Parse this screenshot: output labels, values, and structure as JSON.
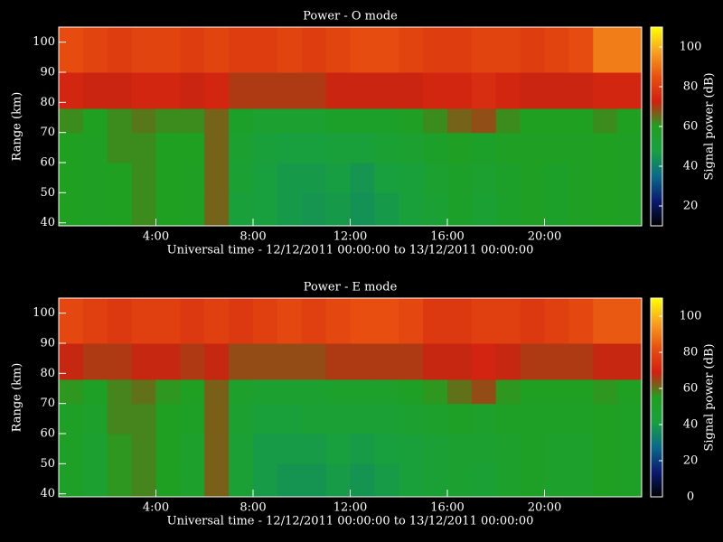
{
  "chart_data": [
    {
      "type": "heatmap",
      "title": "Power - O mode",
      "x_label": "Universal time - 12/12/2011 00:00:00 to 13/12/2011 00:00:00",
      "y_label": "Range (km)",
      "colorbar_label": "Signal power (dB)",
      "x_bins": [
        0,
        1,
        2,
        3,
        4,
        5,
        6,
        7,
        8,
        9,
        10,
        11,
        12,
        13,
        14,
        15,
        16,
        17,
        18,
        19,
        20,
        21,
        22,
        23,
        24
      ],
      "y_bins": [
        39,
        50,
        60,
        70,
        78,
        90,
        105
      ],
      "values": [
        [
          60,
          58,
          60,
          62,
          60,
          58,
          66,
          50,
          48,
          46,
          45,
          46,
          44,
          46,
          50,
          52,
          56,
          52,
          56,
          58,
          56,
          58,
          60,
          58
        ],
        [
          60,
          58,
          60,
          62,
          60,
          58,
          66,
          52,
          48,
          46,
          46,
          47,
          45,
          48,
          50,
          54,
          56,
          54,
          56,
          58,
          56,
          58,
          60,
          58
        ],
        [
          60,
          58,
          62,
          62,
          60,
          60,
          66,
          54,
          50,
          48,
          48,
          50,
          50,
          52,
          54,
          56,
          58,
          56,
          58,
          58,
          58,
          58,
          60,
          58
        ],
        [
          62,
          60,
          62,
          64,
          62,
          62,
          66,
          56,
          54,
          54,
          54,
          56,
          56,
          56,
          58,
          62,
          66,
          68,
          62,
          60,
          60,
          60,
          62,
          60
        ],
        [
          74,
          72,
          72,
          74,
          74,
          72,
          74,
          70,
          70,
          70,
          70,
          72,
          72,
          72,
          72,
          74,
          74,
          76,
          74,
          72,
          72,
          72,
          74,
          74
        ],
        [
          84,
          82,
          80,
          82,
          82,
          80,
          82,
          80,
          80,
          82,
          80,
          82,
          84,
          84,
          82,
          80,
          80,
          82,
          82,
          80,
          82,
          84,
          92,
          92
        ]
      ],
      "xlim": [
        0,
        24
      ],
      "ylim": [
        39,
        105
      ],
      "xticks": [
        {
          "value": 4,
          "label": "4:00"
        },
        {
          "value": 8,
          "label": "8:00"
        },
        {
          "value": 12,
          "label": "12:00"
        },
        {
          "value": 16,
          "label": "16:00"
        },
        {
          "value": 20,
          "label": "20:00"
        }
      ],
      "yticks": [
        40,
        50,
        60,
        70,
        80,
        90,
        100
      ],
      "clim": [
        10,
        110
      ],
      "cticks": [
        20,
        40,
        60,
        80,
        100
      ],
      "colormap": [
        "#000000",
        "#0a1a70",
        "#0a6a8a",
        "#18a040",
        "#20a020",
        "#d02010",
        "#e85010",
        "#f8a020",
        "#ffff00"
      ]
    },
    {
      "type": "heatmap",
      "title": "Power - E mode",
      "x_label": "Universal time - 12/12/2011 00:00:00 to 13/12/2011 00:00:00",
      "y_label": "Range (km)",
      "colorbar_label": "Signal power (dB)",
      "x_bins": [
        0,
        1,
        2,
        3,
        4,
        5,
        6,
        7,
        8,
        9,
        10,
        11,
        12,
        13,
        14,
        15,
        16,
        17,
        18,
        19,
        20,
        21,
        22,
        23,
        24
      ],
      "y_bins": [
        39,
        50,
        60,
        70,
        78,
        90,
        105
      ],
      "values": [
        [
          52,
          48,
          56,
          58,
          54,
          50,
          62,
          46,
          40,
          38,
          38,
          40,
          38,
          40,
          44,
          46,
          48,
          46,
          50,
          52,
          50,
          50,
          54,
          52
        ],
        [
          52,
          48,
          56,
          58,
          54,
          50,
          62,
          46,
          40,
          40,
          40,
          42,
          40,
          42,
          44,
          46,
          48,
          48,
          50,
          52,
          50,
          50,
          54,
          52
        ],
        [
          52,
          50,
          58,
          58,
          54,
          52,
          62,
          48,
          44,
          44,
          46,
          46,
          46,
          46,
          48,
          50,
          52,
          50,
          52,
          52,
          52,
          52,
          54,
          52
        ],
        [
          56,
          52,
          58,
          60,
          56,
          54,
          62,
          50,
          48,
          48,
          48,
          50,
          50,
          50,
          52,
          56,
          60,
          64,
          56,
          54,
          54,
          54,
          56,
          54
        ],
        [
          68,
          66,
          66,
          68,
          68,
          66,
          68,
          64,
          64,
          64,
          64,
          66,
          66,
          66,
          66,
          68,
          68,
          70,
          68,
          66,
          66,
          66,
          68,
          68
        ],
        [
          80,
          78,
          76,
          78,
          78,
          76,
          78,
          76,
          78,
          80,
          78,
          80,
          82,
          82,
          80,
          76,
          76,
          78,
          78,
          76,
          78,
          80,
          84,
          84
        ]
      ],
      "xlim": [
        0,
        24
      ],
      "ylim": [
        39,
        105
      ],
      "xticks": [
        {
          "value": 4,
          "label": "4:00"
        },
        {
          "value": 8,
          "label": "8:00"
        },
        {
          "value": 12,
          "label": "12:00"
        },
        {
          "value": 16,
          "label": "16:00"
        },
        {
          "value": 20,
          "label": "20:00"
        }
      ],
      "yticks": [
        40,
        50,
        60,
        70,
        80,
        90,
        100
      ],
      "clim": [
        0,
        110
      ],
      "cticks": [
        0,
        20,
        40,
        60,
        80,
        100
      ],
      "colormap": [
        "#000000",
        "#0a1a70",
        "#0a6a8a",
        "#18a040",
        "#20a020",
        "#d02010",
        "#e85010",
        "#f8a020",
        "#ffff00"
      ]
    }
  ]
}
